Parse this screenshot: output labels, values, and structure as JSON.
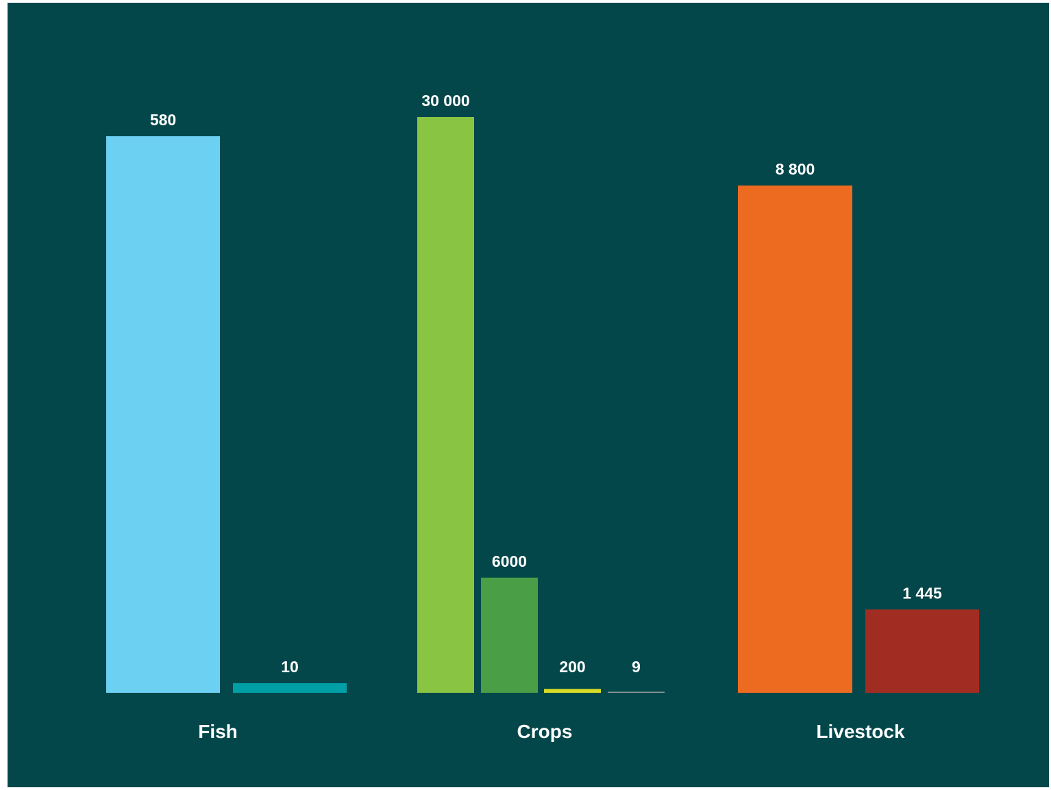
{
  "colors": {
    "background": "#04474A",
    "frame": "#ffffff"
  },
  "chart_data": {
    "type": "bar",
    "groups": [
      {
        "label": "Fish",
        "bars": [
          {
            "value": 580,
            "label": "580",
            "color": "#6CD0F2"
          },
          {
            "value": 10,
            "label": "10",
            "color": "#009FA6"
          }
        ]
      },
      {
        "label": "Crops",
        "bars": [
          {
            "value": 30000,
            "label": "30 000",
            "color": "#8AC443"
          },
          {
            "value": 6000,
            "label": "6000",
            "color": "#4A9E45"
          },
          {
            "value": 200,
            "label": "200",
            "color": "#D8DC26"
          },
          {
            "value": 9,
            "label": "9",
            "color": "#8F9C98"
          }
        ]
      },
      {
        "label": "Livestock",
        "bars": [
          {
            "value": 8800,
            "label": "8 800",
            "color": "#ED6B21"
          },
          {
            "value": 1445,
            "label": "1 445",
            "color": "#A12D22"
          }
        ]
      }
    ],
    "title": "",
    "xlabel": "",
    "ylabel": "",
    "grid": false,
    "legend": "none",
    "axis_visible": false
  }
}
